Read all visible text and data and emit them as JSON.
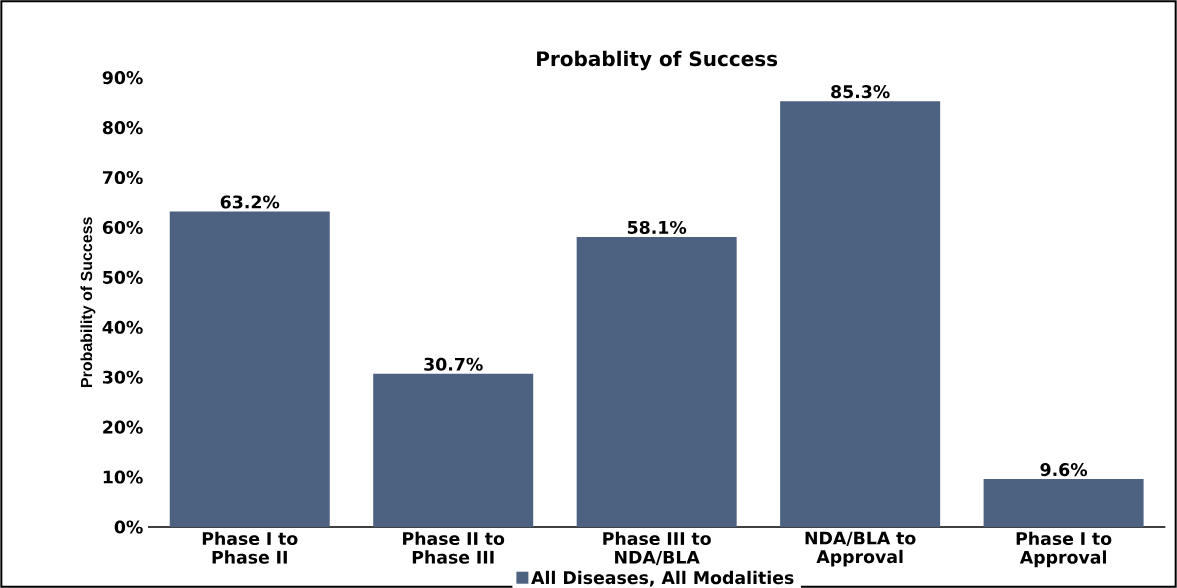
{
  "chart_data": {
    "type": "bar",
    "title": "Probablity of Success",
    "ylabel": "Probability of Success",
    "categories": [
      "Phase I to Phase II",
      "Phase II to Phase III",
      "Phase III to NDA/BLA",
      "NDA/BLA to Approval",
      "Phase I to Approval"
    ],
    "series": [
      {
        "name": "All Diseases, All Modalities",
        "color": "#4d6180",
        "values": [
          63.2,
          30.7,
          58.1,
          85.3,
          9.6
        ],
        "value_labels": [
          "63.2%",
          "30.7%",
          "58.1%",
          "85.3%",
          "9.6%"
        ]
      }
    ],
    "ylim": [
      0,
      90
    ],
    "yticks": [
      {
        "value": 0,
        "label": "0%"
      },
      {
        "value": 10,
        "label": "10%"
      },
      {
        "value": 20,
        "label": "20%"
      },
      {
        "value": 30,
        "label": "30%"
      },
      {
        "value": 40,
        "label": "40%"
      },
      {
        "value": 50,
        "label": "50%"
      },
      {
        "value": 60,
        "label": "60%"
      },
      {
        "value": 70,
        "label": "70%"
      },
      {
        "value": 80,
        "label": "80%"
      },
      {
        "value": 90,
        "label": "90%"
      }
    ],
    "grid": false,
    "legend": "bottom"
  }
}
